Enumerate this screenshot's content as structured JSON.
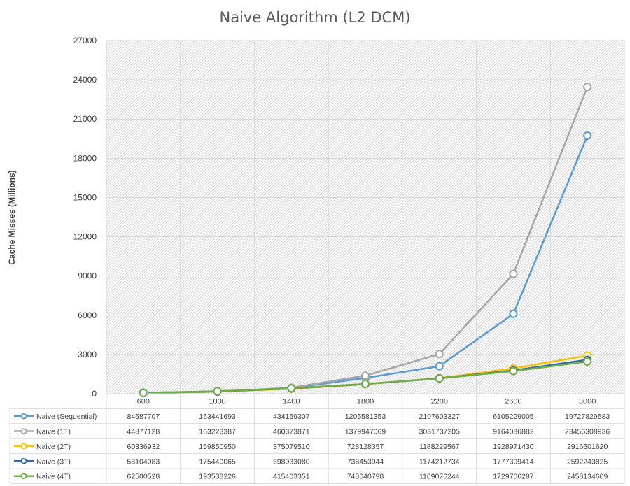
{
  "chart_data": {
    "type": "line",
    "title": "Naive Algorithm (L2 DCM)",
    "xlabel": "",
    "ylabel": "Cache Misses (Millions)",
    "ylim": [
      0,
      27000
    ],
    "yticks": [
      0,
      3000,
      6000,
      9000,
      12000,
      15000,
      18000,
      21000,
      24000,
      27000
    ],
    "categories": [
      "600",
      "1000",
      "1400",
      "1800",
      "2200",
      "2600",
      "3000"
    ],
    "grid": true,
    "legend": "bottom data table",
    "series": [
      {
        "name": "Naive (Sequential)",
        "color": "#5B9BD5",
        "table_values": [
          "84587707",
          "153441693",
          "434159307",
          "1205581353",
          "2107603327",
          "6105229005",
          "19727829583"
        ],
        "values": [
          84.587707,
          153.441693,
          434.159307,
          1205.581353,
          2107.603327,
          6105.229005,
          19727.829583
        ]
      },
      {
        "name": "Naive (1T)",
        "color": "#A5A5A5",
        "table_values": [
          "44877128",
          "163223387",
          "460373871",
          "1379947069",
          "3031737205",
          "9164086882",
          "23456308936"
        ],
        "values": [
          44.877128,
          163.223387,
          460.373871,
          1379.947069,
          3031.737205,
          9164.086882,
          23456.308936
        ]
      },
      {
        "name": "Naive (2T)",
        "color": "#FFC000",
        "table_values": [
          "60336932",
          "159850950",
          "375079510",
          "728128357",
          "1188229567",
          "1928971430",
          "2916601620"
        ],
        "values": [
          60.336932,
          159.85095,
          375.07951,
          728.128357,
          1188.229567,
          1928.97143,
          2916.60162
        ]
      },
      {
        "name": "Naive (3T)",
        "color": "#2E6BB0",
        "table_values": [
          "58104083",
          "175440065",
          "398933080",
          "738453944",
          "1174212734",
          "1777309414",
          "2592243825"
        ],
        "values": [
          58.104083,
          175.440065,
          398.93308,
          738.453944,
          1174.212734,
          1777.309414,
          2592.243825
        ]
      },
      {
        "name": "Naive (4T)",
        "color": "#70AD47",
        "table_values": [
          "62500528",
          "193533226",
          "415403351",
          "748640798",
          "1169076244",
          "1729706287",
          "2458134609"
        ],
        "values": [
          62.500528,
          193.533226,
          415.403351,
          748.640798,
          1169.076244,
          1729.706287,
          2458.134609
        ]
      }
    ]
  }
}
